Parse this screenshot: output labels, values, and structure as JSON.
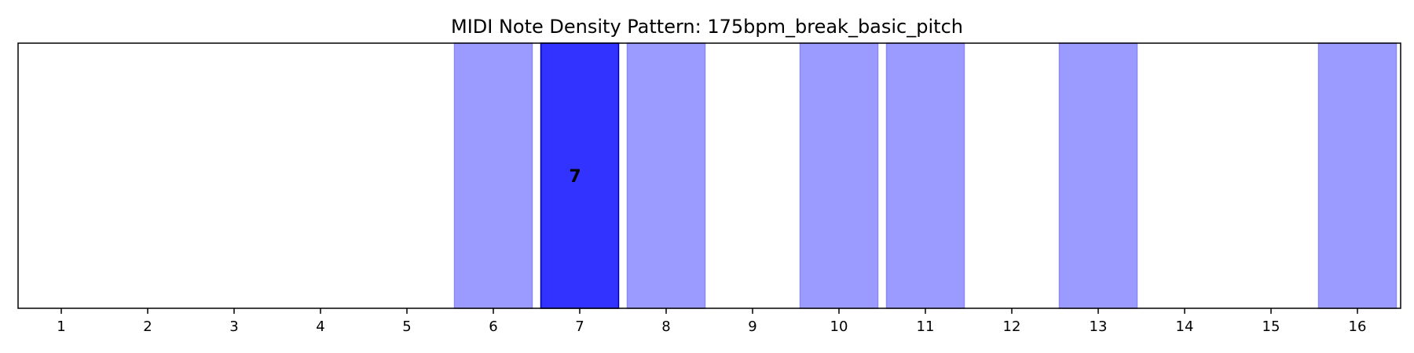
{
  "chart_data": {
    "type": "bar",
    "title": "MIDI Note Density Pattern: 175bpm_break_basic_pitch",
    "xlabel": "",
    "ylabel": "",
    "x_ticks": [
      1,
      2,
      3,
      4,
      5,
      6,
      7,
      8,
      9,
      10,
      11,
      12,
      13,
      14,
      15,
      16
    ],
    "xlim": [
      0.5,
      16.5
    ],
    "grid": false,
    "legend": "none",
    "active_steps": [
      {
        "step": 6,
        "highlighted": false
      },
      {
        "step": 7,
        "highlighted": true,
        "label": "7"
      },
      {
        "step": 8,
        "highlighted": false
      },
      {
        "step": 10,
        "highlighted": false
      },
      {
        "step": 11,
        "highlighted": false
      },
      {
        "step": 13,
        "highlighted": false
      },
      {
        "step": 16,
        "highlighted": false
      }
    ],
    "colors": {
      "active": "#9b9bff",
      "active_edge": "#8a8af0",
      "highlight": "#3333ff",
      "highlight_edge": "#0000a0",
      "axes": "#000000"
    }
  }
}
